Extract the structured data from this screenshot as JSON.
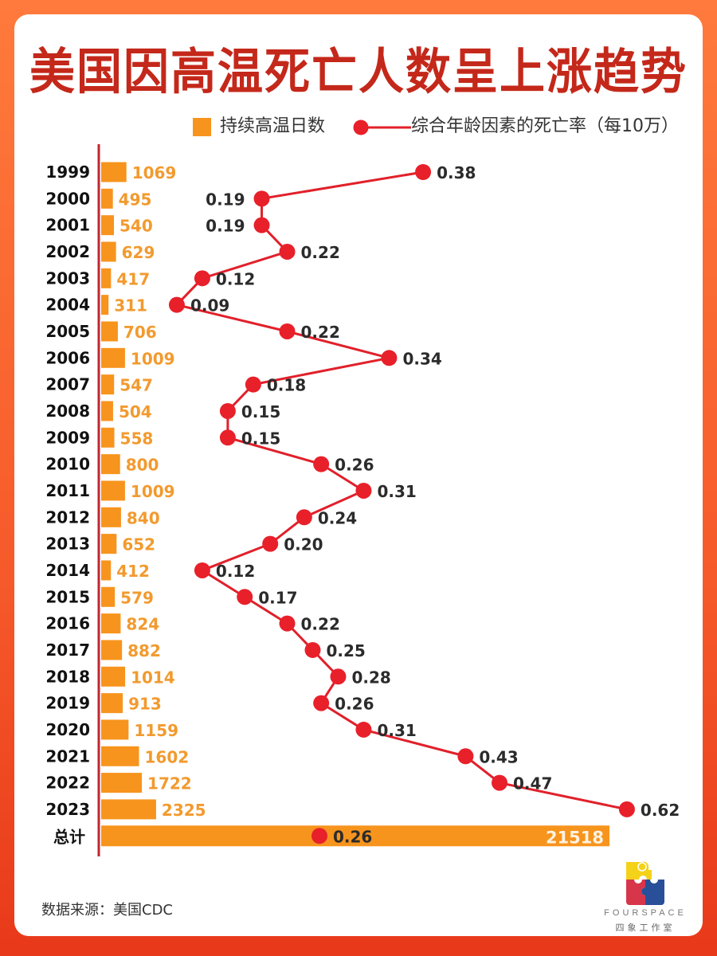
{
  "title": "美国因高温死亡人数呈上涨趋势",
  "legend": {
    "bars_label": "持续高温日数",
    "line_label": "综合年龄因素的死亡率（每10万）"
  },
  "source": "数据来源：美国CDC",
  "logo": {
    "name_en": "FOURSPACE",
    "name_cn": "四象工作室"
  },
  "colors": {
    "bar": "#f7941d",
    "line": "#e1202a",
    "dot": "#e8202a",
    "axis": "#c0272d",
    "title": "#c4281a"
  },
  "chart_data": {
    "type": "bar+line",
    "title": "美国因高温死亡人数呈上涨趋势",
    "categories": [
      "1999",
      "2000",
      "2001",
      "2002",
      "2003",
      "2004",
      "2005",
      "2006",
      "2007",
      "2008",
      "2009",
      "2010",
      "2011",
      "2012",
      "2013",
      "2014",
      "2015",
      "2016",
      "2017",
      "2018",
      "2019",
      "2020",
      "2021",
      "2022",
      "2023"
    ],
    "series": [
      {
        "name": "持续高温日数",
        "type": "bar",
        "values": [
          1069,
          495,
          540,
          629,
          417,
          311,
          706,
          1009,
          547,
          504,
          558,
          800,
          1009,
          840,
          652,
          412,
          579,
          824,
          882,
          1014,
          913,
          1159,
          1602,
          1722,
          2325
        ]
      },
      {
        "name": "综合年龄因素的死亡率（每10万）",
        "type": "line",
        "values": [
          0.38,
          0.19,
          0.19,
          0.22,
          0.12,
          0.09,
          0.22,
          0.34,
          0.18,
          0.15,
          0.15,
          0.26,
          0.31,
          0.24,
          0.2,
          0.12,
          0.17,
          0.22,
          0.25,
          0.28,
          0.26,
          0.31,
          0.43,
          0.47,
          0.62
        ],
        "labels": [
          "0.38",
          "0.19",
          "0.19",
          "0.22",
          "0.12",
          "0.09",
          "0.22",
          "0.34",
          "0.18",
          "0.15",
          "0.15",
          "0.26",
          "0.31",
          "0.24",
          "0.20",
          "0.12",
          "0.17",
          "0.22",
          "0.25",
          "0.28",
          "0.26",
          "0.31",
          "0.43",
          "0.47",
          "0.62"
        ],
        "label_side": [
          "right",
          "left",
          "left",
          "right",
          "right",
          "right",
          "right",
          "right",
          "right",
          "right",
          "right",
          "right",
          "right",
          "right",
          "right",
          "right",
          "right",
          "right",
          "right",
          "right",
          "right",
          "right",
          "right",
          "right",
          "right"
        ]
      }
    ],
    "total": {
      "label": "总计",
      "days": 21518,
      "rate": 0.26,
      "rate_label": "0.26"
    },
    "orientation": "horizontal",
    "xlabel": "",
    "ylabel": "",
    "grid": false,
    "legend_position": "top-right"
  }
}
